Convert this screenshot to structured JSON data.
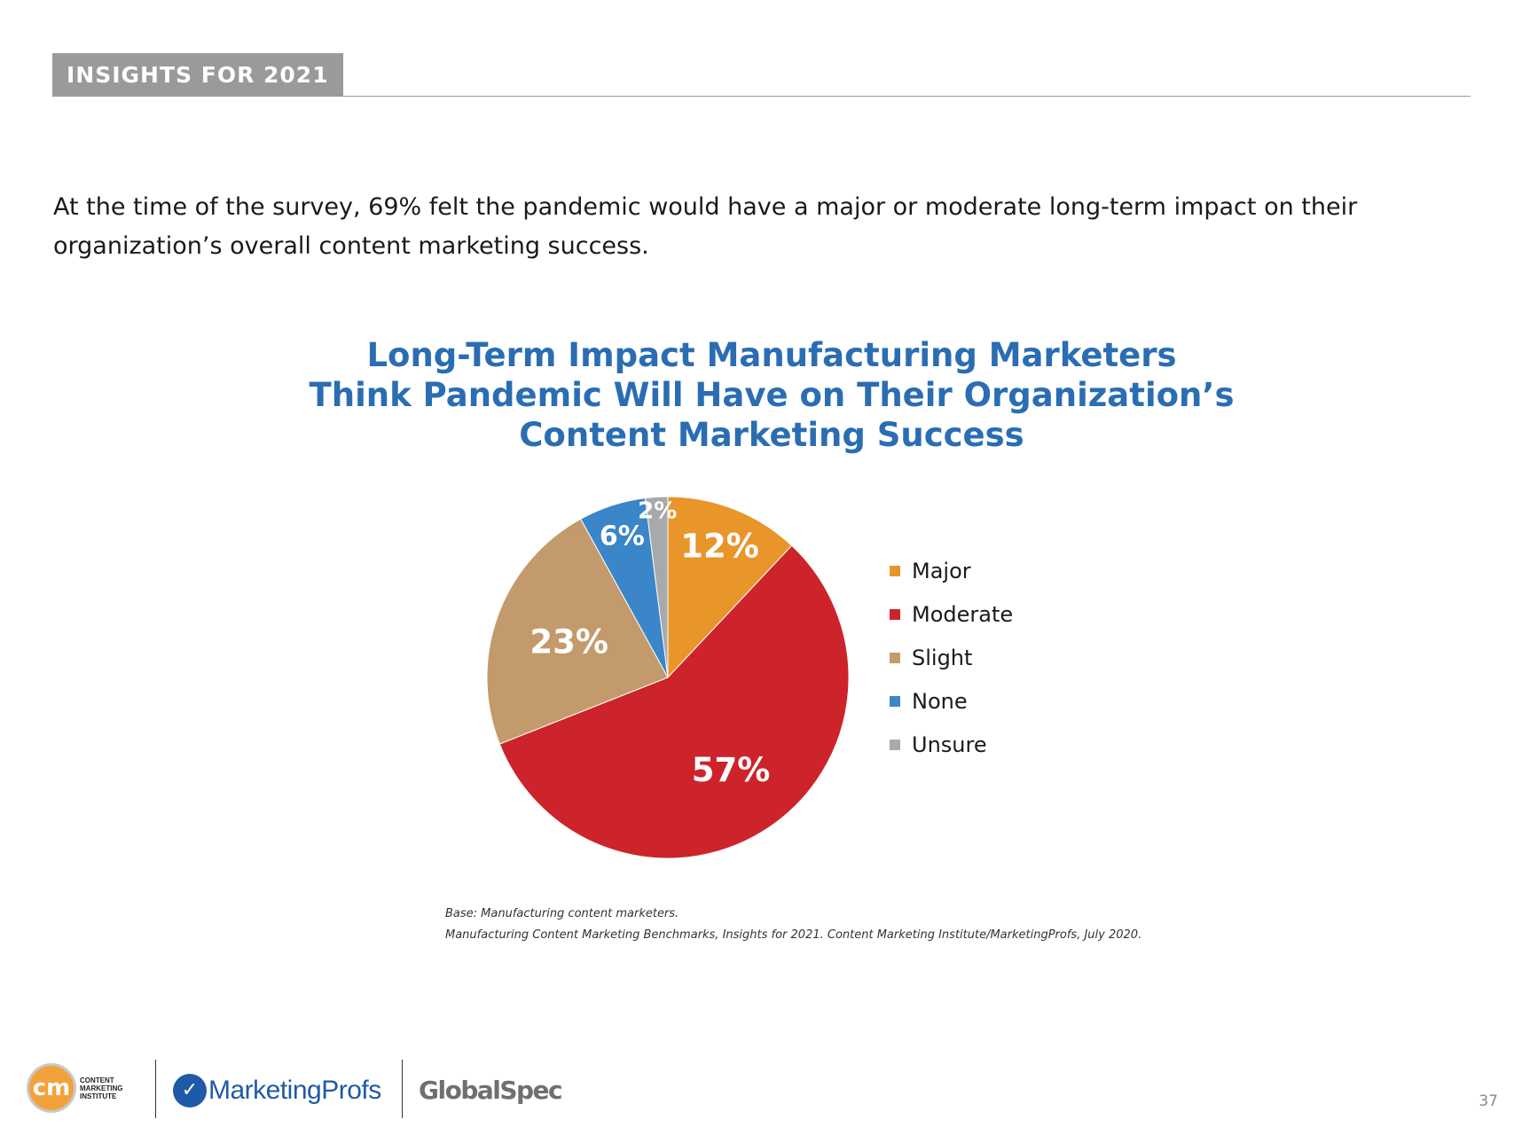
{
  "section": {
    "label": "INSIGHTS FOR 2021"
  },
  "intro": {
    "text": "At the time of the survey, 69% felt the pandemic would have a major or moderate long-term impact on their organization’s overall content marketing success."
  },
  "chart_data": {
    "type": "pie",
    "title_lines": [
      "Long-Term Impact Manufacturing Marketers",
      "Think Pandemic Will Have on Their Organization’s",
      "Content Marketing Success"
    ],
    "slices": [
      {
        "label": "Major",
        "value": 12,
        "display": "12%",
        "color": "#e8952a"
      },
      {
        "label": "Moderate",
        "value": 57,
        "display": "57%",
        "color": "#cd232a"
      },
      {
        "label": "Slight",
        "value": 23,
        "display": "23%",
        "color": "#c39a6b"
      },
      {
        "label": "None",
        "value": 6,
        "display": "6%",
        "color": "#3a86c8"
      },
      {
        "label": "Unsure",
        "value": 2,
        "display": "2%",
        "color": "#a8a9ab"
      }
    ],
    "legend_position": "right"
  },
  "source": {
    "base": "Base: Manufacturing content marketers.",
    "citation": "Manufacturing Content Marketing Benchmarks, Insights for 2021. Content Marketing Institute/MarketingProfs, July 2020."
  },
  "footer": {
    "cmi_mark": "cm",
    "cmi_lines": [
      "CONTENT",
      "MARKETING",
      "INSTITUTE"
    ],
    "marketingprofs": "MarketingProfs",
    "globalspec": "GlobalSpec"
  },
  "page_number": "37"
}
